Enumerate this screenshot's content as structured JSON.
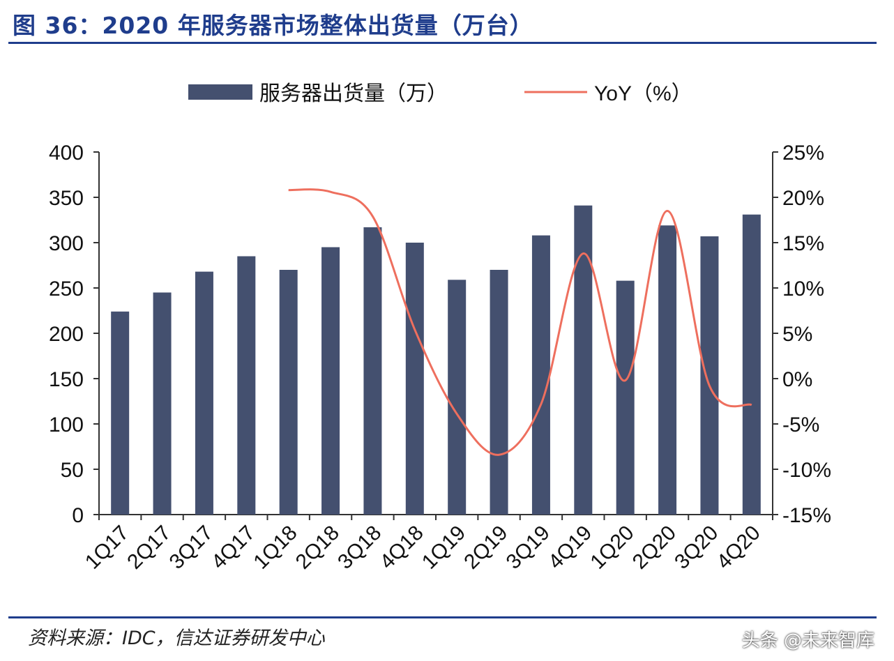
{
  "header": {
    "title": "图 36：2020 年服务器市场整体出货量（万台）"
  },
  "footer": {
    "source": "资料来源：IDC，信达证券研发中心",
    "watermark": "头条 @未来智库"
  },
  "chart_data": {
    "type": "bar+line",
    "categories": [
      "1Q17",
      "2Q17",
      "3Q17",
      "4Q17",
      "1Q18",
      "2Q18",
      "3Q18",
      "4Q18",
      "1Q19",
      "2Q19",
      "3Q19",
      "4Q19",
      "1Q20",
      "2Q20",
      "3Q20",
      "4Q20"
    ],
    "series": [
      {
        "name": "服务器出货量（万）",
        "type": "bar",
        "axis": "left",
        "color": "#44506f",
        "values": [
          224,
          245,
          268,
          285,
          270,
          295,
          317,
          300,
          259,
          270,
          308,
          341,
          258,
          319,
          307,
          331
        ]
      },
      {
        "name": "YoY（%）",
        "type": "line",
        "axis": "right",
        "color": "#ee6f5e",
        "values": [
          null,
          null,
          null,
          null,
          20.8,
          20.6,
          17.9,
          5.4,
          -3.9,
          -8.4,
          -2.8,
          13.8,
          -0.2,
          18.5,
          -0.8,
          -2.9
        ]
      }
    ],
    "y_left": {
      "min": 0,
      "max": 400,
      "ticks": [
        0,
        50,
        100,
        150,
        200,
        250,
        300,
        350,
        400
      ]
    },
    "y_right": {
      "min": -15,
      "max": 25,
      "ticks": [
        "-15%",
        "-10%",
        "-5%",
        "0%",
        "5%",
        "10%",
        "15%",
        "20%",
        "25%"
      ]
    },
    "legend_position": "top",
    "grid": false
  }
}
